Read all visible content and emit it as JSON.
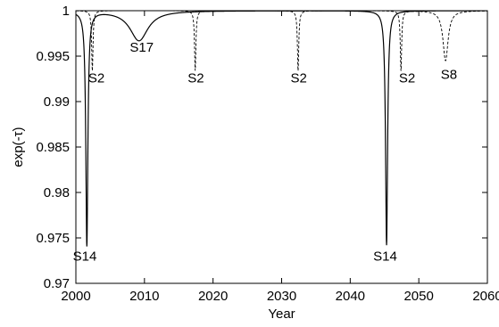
{
  "chart_data": {
    "type": "line",
    "title": "",
    "xlabel": "Year",
    "ylabel": "exp(-τ)",
    "xlim": [
      2000,
      2060
    ],
    "ylim": [
      0.97,
      1.0
    ],
    "xticks": [
      2000,
      2010,
      2020,
      2030,
      2040,
      2050,
      2060
    ],
    "yticks": [
      0.97,
      0.975,
      0.98,
      0.985,
      0.99,
      0.995,
      1
    ],
    "xtick_labels": [
      "2000",
      "2010",
      "2020",
      "2030",
      "2040",
      "2050",
      "2060"
    ],
    "ytick_labels": [
      "0.97",
      "0.975",
      "0.98",
      "0.985",
      "0.99",
      "0.995",
      "1"
    ],
    "grid": false,
    "series": [
      {
        "style": "solid",
        "dips": [
          {
            "center": 2001.6,
            "depth": 0.0258,
            "width": 0.18
          },
          {
            "center": 2009.2,
            "depth": 0.0033,
            "width": 1.6
          },
          {
            "center": 2045.3,
            "depth": 0.0258,
            "width": 0.18
          }
        ]
      },
      {
        "style": "dashed",
        "dips": [
          {
            "center": 2002.4,
            "depth": 0.0066,
            "width": 0.12
          },
          {
            "center": 2017.4,
            "depth": 0.0066,
            "width": 0.12
          },
          {
            "center": 2032.4,
            "depth": 0.0066,
            "width": 0.12
          },
          {
            "center": 2047.4,
            "depth": 0.0066,
            "width": 0.12
          },
          {
            "center": 2053.9,
            "depth": 0.0055,
            "width": 0.45
          }
        ]
      }
    ],
    "annotations": [
      {
        "text": "S17",
        "x": 2009.6,
        "y": 0.9955
      },
      {
        "text": "S2",
        "x": 2003.0,
        "y": 0.9921
      },
      {
        "text": "S2",
        "x": 2017.5,
        "y": 0.9921
      },
      {
        "text": "S2",
        "x": 2032.5,
        "y": 0.9921
      },
      {
        "text": "S2",
        "x": 2048.3,
        "y": 0.9921
      },
      {
        "text": "S8",
        "x": 2054.4,
        "y": 0.9925
      },
      {
        "text": "S14",
        "x": 2001.3,
        "y": 0.9725
      },
      {
        "text": "S14",
        "x": 2045.1,
        "y": 0.9725
      }
    ]
  }
}
